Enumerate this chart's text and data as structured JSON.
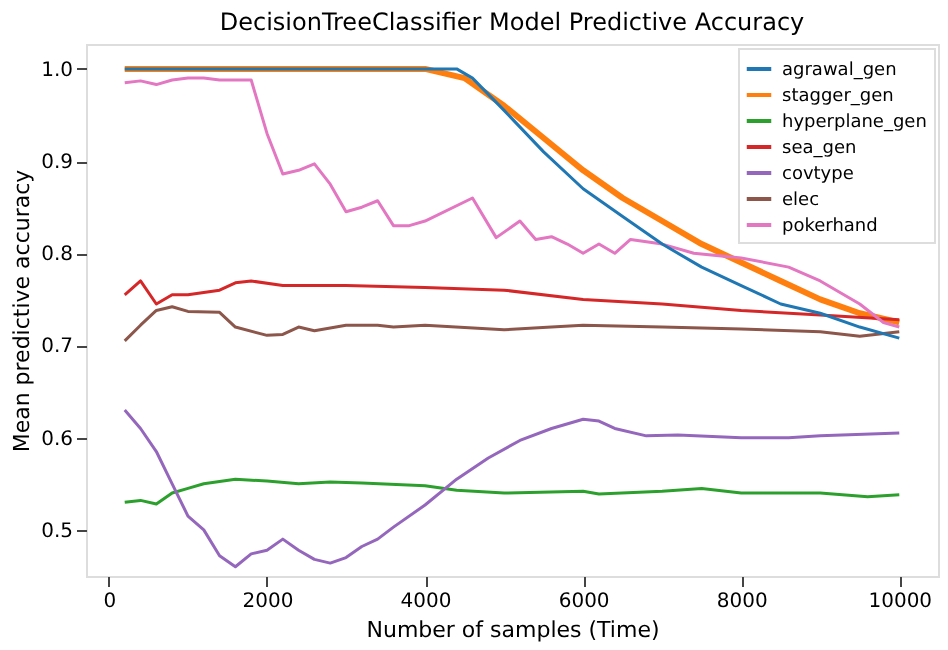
{
  "chart_data": {
    "type": "line",
    "title": "DecisionTreeClassifier Model Predictive Accuracy",
    "xlabel": "Number of samples (Time)",
    "ylabel": "Mean predictive accuracy",
    "xlim": [
      -290,
      10490
    ],
    "ylim": [
      0.45,
      1.027
    ],
    "xticks": [
      0,
      2000,
      4000,
      6000,
      8000,
      10000
    ],
    "yticks": [
      {
        "value": 0.5,
        "label": "0.5"
      },
      {
        "value": 0.6,
        "label": "0.6"
      },
      {
        "value": 0.7,
        "label": "0.7"
      },
      {
        "value": 0.8,
        "label": "0.8"
      },
      {
        "value": 0.9,
        "label": "0.9"
      },
      {
        "value": 1.0,
        "label": "1.0"
      }
    ],
    "grid": false,
    "legend": "top right",
    "marker": "none",
    "line_style": "solid",
    "series": [
      {
        "name": "agrawal_gen",
        "color": "#1f77b4",
        "x": [
          200,
          1000,
          2000,
          3000,
          4000,
          4400,
          4600,
          5000,
          5500,
          6000,
          6500,
          7000,
          7500,
          8000,
          8500,
          9000,
          9500,
          10000
        ],
        "values": [
          1.0,
          1.0,
          1.0,
          1.0,
          1.0,
          1.0,
          0.99,
          0.955,
          0.91,
          0.87,
          0.84,
          0.81,
          0.785,
          0.765,
          0.745,
          0.735,
          0.72,
          0.708
        ]
      },
      {
        "name": "stagger_gen",
        "color": "#ff7f0e",
        "x": [
          200,
          1000,
          2000,
          3000,
          4000,
          4500,
          5000,
          5500,
          6000,
          6500,
          7000,
          7500,
          8000,
          8500,
          9000,
          9500,
          10000
        ],
        "values": [
          1.0,
          1.0,
          1.0,
          1.0,
          1.0,
          0.99,
          0.96,
          0.925,
          0.89,
          0.86,
          0.835,
          0.81,
          0.79,
          0.77,
          0.75,
          0.735,
          0.725
        ]
      },
      {
        "name": "hyperplane_gen",
        "color": "#2ca02c",
        "x": [
          200,
          400,
          600,
          800,
          1000,
          1200,
          1600,
          2000,
          2400,
          2800,
          3200,
          4000,
          4400,
          5000,
          6000,
          6200,
          7000,
          7500,
          8000,
          9000,
          9600,
          10000
        ],
        "values": [
          0.53,
          0.532,
          0.528,
          0.54,
          0.545,
          0.55,
          0.555,
          0.553,
          0.55,
          0.552,
          0.551,
          0.548,
          0.543,
          0.54,
          0.542,
          0.539,
          0.542,
          0.545,
          0.54,
          0.54,
          0.536,
          0.538
        ]
      },
      {
        "name": "sea_gen",
        "color": "#d62728",
        "x": [
          200,
          400,
          600,
          800,
          1000,
          1400,
          1600,
          1800,
          2200,
          3000,
          4000,
          5000,
          6000,
          7000,
          8000,
          9000,
          10000
        ],
        "values": [
          0.755,
          0.77,
          0.745,
          0.755,
          0.755,
          0.76,
          0.768,
          0.77,
          0.765,
          0.765,
          0.763,
          0.76,
          0.75,
          0.745,
          0.738,
          0.733,
          0.728
        ]
      },
      {
        "name": "covtype",
        "color": "#9467bd",
        "x": [
          200,
          400,
          600,
          800,
          1000,
          1200,
          1400,
          1600,
          1800,
          2000,
          2200,
          2400,
          2600,
          2800,
          3000,
          3200,
          3400,
          3600,
          4000,
          4400,
          4800,
          5200,
          5600,
          6000,
          6200,
          6400,
          6800,
          7200,
          8000,
          8600,
          9000,
          10000
        ],
        "values": [
          0.63,
          0.61,
          0.585,
          0.55,
          0.515,
          0.5,
          0.472,
          0.46,
          0.474,
          0.478,
          0.49,
          0.478,
          0.468,
          0.464,
          0.47,
          0.482,
          0.49,
          0.503,
          0.527,
          0.555,
          0.578,
          0.597,
          0.61,
          0.62,
          0.618,
          0.61,
          0.602,
          0.603,
          0.6,
          0.6,
          0.602,
          0.605
        ]
      },
      {
        "name": "elec",
        "color": "#8c564b",
        "x": [
          200,
          400,
          600,
          800,
          1000,
          1400,
          1600,
          2000,
          2200,
          2400,
          2600,
          3000,
          3400,
          3600,
          4000,
          5000,
          5600,
          6000,
          7000,
          8000,
          9000,
          9500,
          10000
        ],
        "values": [
          0.705,
          0.722,
          0.738,
          0.742,
          0.737,
          0.736,
          0.72,
          0.711,
          0.712,
          0.72,
          0.716,
          0.722,
          0.722,
          0.72,
          0.722,
          0.717,
          0.72,
          0.722,
          0.72,
          0.718,
          0.715,
          0.71,
          0.715
        ]
      },
      {
        "name": "pokerhand",
        "color": "#e377c2",
        "x": [
          200,
          400,
          600,
          800,
          1000,
          1200,
          1400,
          1800,
          2000,
          2200,
          2400,
          2600,
          2800,
          3000,
          3200,
          3400,
          3600,
          3800,
          4000,
          4600,
          4900,
          5200,
          5400,
          5600,
          5800,
          6000,
          6200,
          6400,
          6600,
          7000,
          7400,
          8000,
          8600,
          9000,
          9500,
          9800,
          10000
        ],
        "values": [
          0.985,
          0.987,
          0.983,
          0.988,
          0.99,
          0.99,
          0.988,
          0.988,
          0.93,
          0.886,
          0.89,
          0.897,
          0.875,
          0.845,
          0.85,
          0.857,
          0.83,
          0.83,
          0.835,
          0.86,
          0.817,
          0.835,
          0.815,
          0.818,
          0.81,
          0.8,
          0.81,
          0.8,
          0.815,
          0.81,
          0.8,
          0.795,
          0.785,
          0.77,
          0.745,
          0.725,
          0.72
        ]
      }
    ]
  }
}
